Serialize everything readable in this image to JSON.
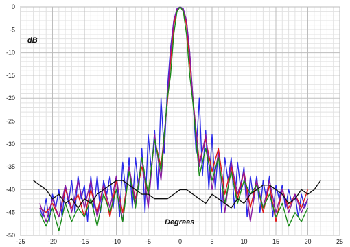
{
  "chart_data": {
    "type": "line",
    "title": "",
    "xlabel": "Degrees",
    "ylabel": "dB",
    "xlim": [
      -25,
      25
    ],
    "ylim": [
      -50,
      0
    ],
    "x_ticks": [
      "-25",
      "-20",
      "-15",
      "-10",
      "-5",
      "0",
      "5",
      "10",
      "15",
      "20",
      "25"
    ],
    "y_ticks": [
      "0",
      "-5",
      "-10",
      "-15",
      "-20",
      "-25",
      "-30",
      "-35",
      "-40",
      "-45",
      "-50"
    ],
    "grid": true,
    "legend": "none",
    "colors": {
      "blue": "#2a2ae8",
      "red": "#e01818",
      "purple": "#8a1aa0",
      "green": "#1a8a1a",
      "black": "#101010",
      "grid_major": "#bdbdbd",
      "grid_minor": "#e2e2e2"
    },
    "series": [
      {
        "color_key": "blue",
        "x": [
          -22,
          -21.5,
          -21,
          -20.5,
          -20,
          -19.5,
          -19,
          -18.5,
          -18,
          -17.5,
          -17,
          -16.5,
          -16,
          -15.5,
          -15,
          -14.5,
          -14,
          -13.5,
          -13,
          -12.5,
          -12,
          -11.5,
          -11,
          -10.5,
          -10,
          -9.5,
          -9,
          -8.5,
          -8,
          -7.5,
          -7,
          -6.5,
          -6,
          -5.5,
          -5,
          -4.5,
          -4,
          -3.5,
          -3,
          -2.5,
          -2,
          -1.5,
          -1,
          -0.5,
          0,
          0.5,
          1,
          1.5,
          2,
          2.5,
          3,
          3.5,
          4,
          4.5,
          5,
          5.5,
          6,
          6.5,
          7,
          7.5,
          8,
          8.5,
          9,
          9.5,
          10,
          10.5,
          11,
          11.5,
          12,
          12.5,
          13,
          13.5,
          14,
          14.5,
          15,
          15.5,
          16,
          16.5,
          17,
          17.5,
          18,
          18.5,
          19,
          19.5,
          20
        ],
        "y": [
          -44,
          -46,
          -42,
          -47,
          -41,
          -44,
          -40,
          -46,
          -39,
          -43,
          -38,
          -45,
          -37,
          -42,
          -39,
          -47,
          -37,
          -44,
          -37,
          -45,
          -38,
          -41,
          -37,
          -44,
          -37,
          -46,
          -34,
          -41,
          -33,
          -44,
          -33,
          -40,
          -31,
          -45,
          -28,
          -36,
          -27,
          -40,
          -20,
          -32,
          -18,
          -9,
          -3,
          -0.4,
          0,
          -0.4,
          -3,
          -10,
          -20,
          -32,
          -20,
          -37,
          -27,
          -40,
          -28,
          -40,
          -31,
          -45,
          -33,
          -38,
          -33,
          -44,
          -34,
          -40,
          -35,
          -46,
          -37,
          -42,
          -37,
          -45,
          -38,
          -42,
          -37,
          -46,
          -39,
          -42,
          -39,
          -44,
          -40,
          -43,
          -41,
          -46,
          -41,
          -44,
          -42
        ]
      },
      {
        "color_key": "red",
        "x": [
          -22,
          -21,
          -20,
          -19,
          -18,
          -17,
          -16,
          -15,
          -14,
          -13,
          -12,
          -11,
          -10,
          -9,
          -8,
          -7,
          -6,
          -5,
          -4,
          -3,
          -2,
          -1.5,
          -1,
          -0.5,
          0,
          0.5,
          1,
          1.5,
          2,
          3,
          4,
          5,
          6,
          7,
          8,
          9,
          10,
          11,
          12,
          13,
          14,
          15,
          16,
          17,
          18,
          19,
          20
        ],
        "y": [
          -44,
          -45,
          -43,
          -46,
          -40,
          -44,
          -41,
          -46,
          -40,
          -45,
          -39,
          -46,
          -38,
          -45,
          -36,
          -42,
          -35,
          -41,
          -29,
          -35,
          -21,
          -12,
          -4,
          -0.6,
          0,
          -0.6,
          -4,
          -12,
          -20,
          -34,
          -29,
          -36,
          -31,
          -41,
          -35,
          -42,
          -36,
          -44,
          -38,
          -45,
          -39,
          -47,
          -40,
          -44,
          -41,
          -44,
          -40
        ]
      },
      {
        "color_key": "purple",
        "x": [
          -22,
          -21,
          -20,
          -19,
          -18,
          -17,
          -16,
          -15,
          -14,
          -13,
          -12,
          -11,
          -10,
          -9,
          -8,
          -7,
          -6,
          -5,
          -4,
          -3,
          -2,
          -1.5,
          -1,
          -0.5,
          0,
          0.5,
          1,
          1.5,
          2,
          3,
          4,
          5,
          6,
          7,
          8,
          9,
          10,
          11,
          12,
          13,
          14,
          15,
          16,
          17,
          18,
          19,
          20
        ],
        "y": [
          -43,
          -47,
          -42,
          -46,
          -39,
          -45,
          -38,
          -44,
          -38,
          -46,
          -39,
          -44,
          -37,
          -47,
          -35,
          -43,
          -33,
          -44,
          -28,
          -38,
          -20,
          -10,
          -3,
          -0.5,
          0,
          -0.5,
          -3,
          -10,
          -20,
          -35,
          -28,
          -40,
          -32,
          -45,
          -34,
          -41,
          -36,
          -47,
          -38,
          -44,
          -38,
          -45,
          -40,
          -45,
          -41,
          -45,
          -42
        ]
      },
      {
        "color_key": "green",
        "x": [
          -22,
          -21,
          -20,
          -19,
          -18,
          -17,
          -16,
          -15,
          -14,
          -13,
          -12,
          -11,
          -10,
          -9,
          -8,
          -7,
          -6,
          -5,
          -4,
          -3,
          -2,
          -1.5,
          -1,
          -0.5,
          0,
          0.5,
          1,
          1.5,
          2,
          3,
          4,
          5,
          6,
          7,
          8,
          9,
          10,
          11,
          12,
          13,
          14,
          15,
          16,
          17,
          18,
          19,
          20
        ],
        "y": [
          -45,
          -48,
          -44,
          -49,
          -43,
          -47,
          -44,
          -46,
          -42,
          -48,
          -41,
          -45,
          -40,
          -47,
          -36,
          -44,
          -33,
          -41,
          -29,
          -36,
          -20,
          -15,
          -6,
          -1,
          0,
          -1,
          -6,
          -15,
          -21,
          -37,
          -31,
          -38,
          -33,
          -43,
          -36,
          -43,
          -38,
          -41,
          -39,
          -44,
          -41,
          -46,
          -43,
          -48,
          -45,
          -47,
          -44
        ]
      },
      {
        "color_key": "black",
        "x": [
          -23,
          -22,
          -21,
          -20,
          -19,
          -18,
          -17,
          -16,
          -15,
          -14,
          -13,
          -12,
          -11,
          -10,
          -9,
          -8,
          -7,
          -6,
          -5,
          -4,
          -3,
          -2,
          -1,
          0,
          1,
          2,
          3,
          4,
          5,
          6,
          7,
          8,
          9,
          10,
          11,
          12,
          13,
          14,
          15,
          16,
          17,
          18,
          19,
          20,
          21,
          22
        ],
        "y": [
          -38,
          -39,
          -40,
          -42,
          -41,
          -43,
          -42,
          -44,
          -42,
          -43,
          -41,
          -40,
          -39,
          -38,
          -38,
          -39,
          -40,
          -41,
          -41,
          -42,
          -42,
          -42,
          -41,
          -40,
          -40,
          -41,
          -42,
          -43,
          -41,
          -42,
          -43,
          -44,
          -42,
          -43,
          -41,
          -40,
          -39,
          -39,
          -40,
          -41,
          -43,
          -42,
          -40,
          -41,
          -40,
          -38
        ]
      }
    ]
  }
}
